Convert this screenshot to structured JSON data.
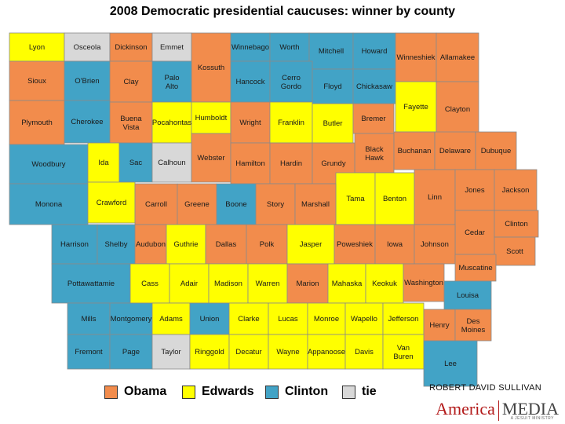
{
  "title": "2008 Democratic presidential caucuses: winner by county",
  "colors": {
    "Obama": "#f28c4c",
    "Edwards": "#ffff00",
    "Clinton": "#42a3c6",
    "tie": "#d8d8d8"
  },
  "legend": [
    {
      "label": "Obama",
      "color": "#f28c4c"
    },
    {
      "label": "Edwards",
      "color": "#ffff00"
    },
    {
      "label": "Clinton",
      "color": "#42a3c6"
    },
    {
      "label": "tie",
      "color": "#d8d8d8"
    }
  ],
  "credit": "ROBERT DAVID SULLIVAN",
  "logo": {
    "word1": "America",
    "word2": "MEDIA",
    "tag": "A JESUIT MINISTRY"
  },
  "counties": [
    {
      "name": "Lyon",
      "winner": "Edwards"
    },
    {
      "name": "Osceola",
      "winner": "tie"
    },
    {
      "name": "Dickinson",
      "winner": "Obama"
    },
    {
      "name": "Emmet",
      "winner": "tie"
    },
    {
      "name": "Kossuth",
      "winner": "Obama"
    },
    {
      "name": "Winnebago",
      "winner": "Clinton"
    },
    {
      "name": "Worth",
      "winner": "Clinton"
    },
    {
      "name": "Mitchell",
      "winner": "Clinton"
    },
    {
      "name": "Howard",
      "winner": "Clinton"
    },
    {
      "name": "Winneshiek",
      "winner": "Obama"
    },
    {
      "name": "Allamakee",
      "winner": "Obama"
    },
    {
      "name": "Sioux",
      "winner": "Obama"
    },
    {
      "name": "O'Brien",
      "winner": "Clinton"
    },
    {
      "name": "Clay",
      "winner": "Obama"
    },
    {
      "name": "Palo Alto",
      "winner": "Clinton"
    },
    {
      "name": "Hancock",
      "winner": "Clinton"
    },
    {
      "name": "Cerro Gordo",
      "winner": "Clinton"
    },
    {
      "name": "Floyd",
      "winner": "Clinton"
    },
    {
      "name": "Chickasaw",
      "winner": "Clinton"
    },
    {
      "name": "Fayette",
      "winner": "Edwards"
    },
    {
      "name": "Clayton",
      "winner": "Obama"
    },
    {
      "name": "Plymouth",
      "winner": "Obama"
    },
    {
      "name": "Cherokee",
      "winner": "Clinton"
    },
    {
      "name": "Buena Vista",
      "winner": "Obama"
    },
    {
      "name": "Pocahontas",
      "winner": "Edwards"
    },
    {
      "name": "Humboldt",
      "winner": "Edwards"
    },
    {
      "name": "Wright",
      "winner": "Obama"
    },
    {
      "name": "Franklin",
      "winner": "Edwards"
    },
    {
      "name": "Butler",
      "winner": "Edwards"
    },
    {
      "name": "Bremer",
      "winner": "Obama"
    },
    {
      "name": "Black Hawk",
      "winner": "Obama"
    },
    {
      "name": "Buchanan",
      "winner": "Obama"
    },
    {
      "name": "Delaware",
      "winner": "Obama"
    },
    {
      "name": "Dubuque",
      "winner": "Obama"
    },
    {
      "name": "Woodbury",
      "winner": "Clinton"
    },
    {
      "name": "Ida",
      "winner": "Edwards"
    },
    {
      "name": "Sac",
      "winner": "Clinton"
    },
    {
      "name": "Calhoun",
      "winner": "tie"
    },
    {
      "name": "Webster",
      "winner": "Obama"
    },
    {
      "name": "Hamilton",
      "winner": "Obama"
    },
    {
      "name": "Hardin",
      "winner": "Obama"
    },
    {
      "name": "Grundy",
      "winner": "Obama"
    },
    {
      "name": "Tama",
      "winner": "Edwards"
    },
    {
      "name": "Benton",
      "winner": "Edwards"
    },
    {
      "name": "Linn",
      "winner": "Obama"
    },
    {
      "name": "Jones",
      "winner": "Obama"
    },
    {
      "name": "Jackson",
      "winner": "Obama"
    },
    {
      "name": "Monona",
      "winner": "Clinton"
    },
    {
      "name": "Crawford",
      "winner": "Edwards"
    },
    {
      "name": "Carroll",
      "winner": "Obama"
    },
    {
      "name": "Greene",
      "winner": "Obama"
    },
    {
      "name": "Boone",
      "winner": "Clinton"
    },
    {
      "name": "Story",
      "winner": "Obama"
    },
    {
      "name": "Marshall",
      "winner": "Obama"
    },
    {
      "name": "Cedar",
      "winner": "Obama"
    },
    {
      "name": "Clinton",
      "winner": "Obama"
    },
    {
      "name": "Harrison",
      "winner": "Clinton"
    },
    {
      "name": "Shelby",
      "winner": "Clinton"
    },
    {
      "name": "Audubon",
      "winner": "Obama"
    },
    {
      "name": "Guthrie",
      "winner": "Edwards"
    },
    {
      "name": "Dallas",
      "winner": "Obama"
    },
    {
      "name": "Polk",
      "winner": "Obama"
    },
    {
      "name": "Jasper",
      "winner": "Edwards"
    },
    {
      "name": "Poweshiek",
      "winner": "Obama"
    },
    {
      "name": "Iowa",
      "winner": "Obama"
    },
    {
      "name": "Johnson",
      "winner": "Obama"
    },
    {
      "name": "Scott",
      "winner": "Obama"
    },
    {
      "name": "Muscatine",
      "winner": "Obama"
    },
    {
      "name": "Pottawattamie",
      "winner": "Clinton"
    },
    {
      "name": "Cass",
      "winner": "Edwards"
    },
    {
      "name": "Adair",
      "winner": "Edwards"
    },
    {
      "name": "Madison",
      "winner": "Edwards"
    },
    {
      "name": "Warren",
      "winner": "Edwards"
    },
    {
      "name": "Marion",
      "winner": "Obama"
    },
    {
      "name": "Mahaska",
      "winner": "Edwards"
    },
    {
      "name": "Keokuk",
      "winner": "Edwards"
    },
    {
      "name": "Washington",
      "winner": "Obama"
    },
    {
      "name": "Louisa",
      "winner": "Clinton"
    },
    {
      "name": "Mills",
      "winner": "Clinton"
    },
    {
      "name": "Montgomery",
      "winner": "Clinton"
    },
    {
      "name": "Adams",
      "winner": "Edwards"
    },
    {
      "name": "Union",
      "winner": "Clinton"
    },
    {
      "name": "Clarke",
      "winner": "Edwards"
    },
    {
      "name": "Lucas",
      "winner": "Edwards"
    },
    {
      "name": "Monroe",
      "winner": "Edwards"
    },
    {
      "name": "Wapello",
      "winner": "Edwards"
    },
    {
      "name": "Jefferson",
      "winner": "Edwards"
    },
    {
      "name": "Henry",
      "winner": "Obama"
    },
    {
      "name": "Des Moines",
      "winner": "Obama"
    },
    {
      "name": "Fremont",
      "winner": "Clinton"
    },
    {
      "name": "Page",
      "winner": "Clinton"
    },
    {
      "name": "Taylor",
      "winner": "tie"
    },
    {
      "name": "Ringgold",
      "winner": "Edwards"
    },
    {
      "name": "Decatur",
      "winner": "Edwards"
    },
    {
      "name": "Wayne",
      "winner": "Edwards"
    },
    {
      "name": "Appanoose",
      "winner": "Edwards"
    },
    {
      "name": "Davis",
      "winner": "Edwards"
    },
    {
      "name": "Van Buren",
      "winner": "Edwards"
    },
    {
      "name": "Lee",
      "winner": "Clinton"
    }
  ]
}
